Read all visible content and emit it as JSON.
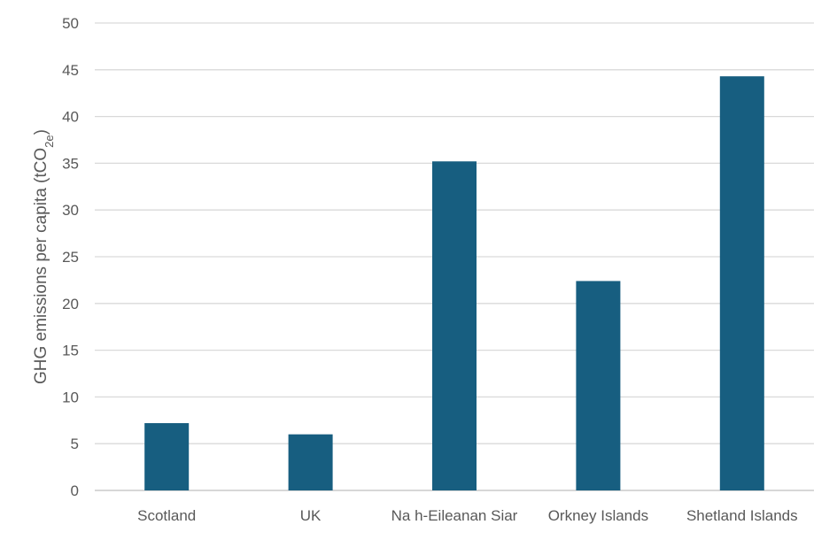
{
  "chart_data": {
    "type": "bar",
    "categories": [
      "Scotland",
      "UK",
      "Na h-Eileanan Siar",
      "Orkney Islands",
      "Shetland Islands"
    ],
    "values": [
      7.2,
      6.0,
      35.2,
      22.4,
      44.3
    ],
    "title": "",
    "xlabel": "",
    "ylabel": "GHG emissions per capita (tCO",
    "ylabel_subscript": "2e",
    "ylabel_suffix": ")",
    "ylim": [
      0,
      50
    ],
    "yticks": [
      0,
      5,
      10,
      15,
      20,
      25,
      30,
      35,
      40,
      45,
      50
    ],
    "grid": true,
    "bar_color": "#175e80"
  }
}
